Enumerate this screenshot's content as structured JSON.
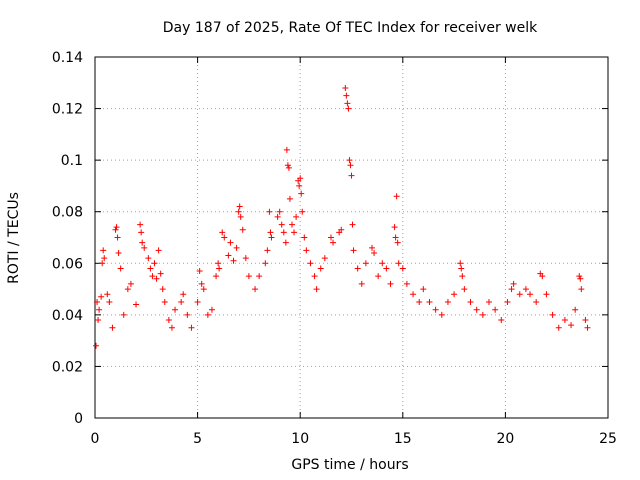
{
  "chart_data": {
    "type": "scatter",
    "title": "Day 187 of 2025, Rate Of TEC Index for receiver welk",
    "xlabel": "GPS time / hours",
    "ylabel": "ROTI / TECUs",
    "xlim": [
      0,
      25
    ],
    "ylim": [
      0,
      0.14
    ],
    "x_ticks": [
      0,
      5,
      10,
      15,
      20,
      25
    ],
    "x_tick_labels": [
      "0",
      "5",
      "10",
      "15",
      "20",
      "25"
    ],
    "y_ticks": [
      0,
      0.02,
      0.04,
      0.06,
      0.08,
      0.1,
      0.12,
      0.14
    ],
    "y_tick_labels": [
      "0",
      "0.02",
      "0.04",
      "0.06",
      "0.08",
      "0.1",
      "0.12",
      "0.14"
    ],
    "grid": true,
    "marker": "plus",
    "color": "#ff0000",
    "series": [
      {
        "points": [
          [
            0.05,
            0.028
          ],
          [
            0.1,
            0.045
          ],
          [
            0.15,
            0.038
          ],
          [
            0.2,
            0.042
          ],
          [
            0.3,
            0.047
          ],
          [
            0.35,
            0.06
          ],
          [
            0.4,
            0.065
          ],
          [
            0.45,
            0.062
          ],
          [
            0.6,
            0.048
          ],
          [
            0.7,
            0.045
          ],
          [
            0.85,
            0.035
          ],
          [
            1.0,
            0.073
          ],
          [
            1.05,
            0.074
          ],
          [
            1.1,
            0.07
          ],
          [
            1.15,
            0.064
          ],
          [
            1.25,
            0.058
          ],
          [
            1.4,
            0.04
          ],
          [
            1.6,
            0.05
          ],
          [
            1.75,
            0.052
          ],
          [
            2.0,
            0.044
          ],
          [
            2.2,
            0.075
          ],
          [
            2.25,
            0.072
          ],
          [
            2.3,
            0.068
          ],
          [
            2.4,
            0.066
          ],
          [
            2.6,
            0.062
          ],
          [
            2.7,
            0.058
          ],
          [
            2.8,
            0.055
          ],
          [
            2.9,
            0.06
          ],
          [
            3.0,
            0.054
          ],
          [
            3.1,
            0.065
          ],
          [
            3.2,
            0.056
          ],
          [
            3.3,
            0.05
          ],
          [
            3.4,
            0.045
          ],
          [
            3.6,
            0.038
          ],
          [
            3.75,
            0.035
          ],
          [
            3.9,
            0.042
          ],
          [
            4.2,
            0.045
          ],
          [
            4.3,
            0.048
          ],
          [
            4.5,
            0.04
          ],
          [
            4.7,
            0.035
          ],
          [
            5.0,
            0.045
          ],
          [
            5.1,
            0.057
          ],
          [
            5.2,
            0.052
          ],
          [
            5.3,
            0.05
          ],
          [
            5.5,
            0.04
          ],
          [
            5.7,
            0.042
          ],
          [
            5.9,
            0.055
          ],
          [
            6.0,
            0.06
          ],
          [
            6.05,
            0.058
          ],
          [
            6.2,
            0.072
          ],
          [
            6.3,
            0.07
          ],
          [
            6.5,
            0.063
          ],
          [
            6.6,
            0.068
          ],
          [
            6.75,
            0.061
          ],
          [
            6.9,
            0.066
          ],
          [
            7.0,
            0.08
          ],
          [
            7.05,
            0.082
          ],
          [
            7.1,
            0.078
          ],
          [
            7.2,
            0.073
          ],
          [
            7.35,
            0.062
          ],
          [
            7.5,
            0.055
          ],
          [
            7.8,
            0.05
          ],
          [
            8.0,
            0.055
          ],
          [
            8.3,
            0.06
          ],
          [
            8.4,
            0.065
          ],
          [
            8.5,
            0.08
          ],
          [
            8.55,
            0.072
          ],
          [
            8.6,
            0.07
          ],
          [
            8.9,
            0.078
          ],
          [
            9.0,
            0.08
          ],
          [
            9.1,
            0.075
          ],
          [
            9.2,
            0.072
          ],
          [
            9.3,
            0.068
          ],
          [
            9.35,
            0.104
          ],
          [
            9.4,
            0.098
          ],
          [
            9.45,
            0.097
          ],
          [
            9.5,
            0.085
          ],
          [
            9.6,
            0.075
          ],
          [
            9.7,
            0.072
          ],
          [
            9.8,
            0.078
          ],
          [
            9.9,
            0.092
          ],
          [
            9.95,
            0.09
          ],
          [
            10.0,
            0.093
          ],
          [
            10.05,
            0.087
          ],
          [
            10.1,
            0.08
          ],
          [
            10.2,
            0.07
          ],
          [
            10.3,
            0.065
          ],
          [
            10.5,
            0.06
          ],
          [
            10.7,
            0.055
          ],
          [
            10.8,
            0.05
          ],
          [
            11.0,
            0.058
          ],
          [
            11.2,
            0.062
          ],
          [
            11.5,
            0.07
          ],
          [
            11.6,
            0.068
          ],
          [
            11.9,
            0.072
          ],
          [
            12.0,
            0.073
          ],
          [
            12.2,
            0.128
          ],
          [
            12.25,
            0.125
          ],
          [
            12.3,
            0.122
          ],
          [
            12.35,
            0.12
          ],
          [
            12.4,
            0.1
          ],
          [
            12.45,
            0.098
          ],
          [
            12.5,
            0.094
          ],
          [
            12.55,
            0.075
          ],
          [
            12.6,
            0.065
          ],
          [
            12.8,
            0.058
          ],
          [
            13.0,
            0.052
          ],
          [
            13.2,
            0.06
          ],
          [
            13.5,
            0.066
          ],
          [
            13.6,
            0.064
          ],
          [
            13.8,
            0.055
          ],
          [
            14.0,
            0.06
          ],
          [
            14.2,
            0.058
          ],
          [
            14.4,
            0.052
          ],
          [
            14.6,
            0.074
          ],
          [
            14.65,
            0.07
          ],
          [
            14.7,
            0.086
          ],
          [
            14.75,
            0.068
          ],
          [
            14.8,
            0.06
          ],
          [
            15.0,
            0.058
          ],
          [
            15.2,
            0.052
          ],
          [
            15.5,
            0.048
          ],
          [
            15.8,
            0.045
          ],
          [
            16.0,
            0.05
          ],
          [
            16.3,
            0.045
          ],
          [
            16.6,
            0.042
          ],
          [
            16.9,
            0.04
          ],
          [
            17.2,
            0.045
          ],
          [
            17.5,
            0.048
          ],
          [
            17.8,
            0.06
          ],
          [
            17.85,
            0.058
          ],
          [
            17.9,
            0.055
          ],
          [
            18.0,
            0.05
          ],
          [
            18.3,
            0.045
          ],
          [
            18.6,
            0.042
          ],
          [
            18.9,
            0.04
          ],
          [
            19.2,
            0.045
          ],
          [
            19.5,
            0.042
          ],
          [
            19.8,
            0.038
          ],
          [
            20.1,
            0.045
          ],
          [
            20.3,
            0.05
          ],
          [
            20.4,
            0.052
          ],
          [
            20.7,
            0.048
          ],
          [
            21.0,
            0.05
          ],
          [
            21.2,
            0.048
          ],
          [
            21.5,
            0.045
          ],
          [
            21.7,
            0.056
          ],
          [
            21.8,
            0.055
          ],
          [
            22.0,
            0.048
          ],
          [
            22.3,
            0.04
          ],
          [
            22.6,
            0.035
          ],
          [
            22.9,
            0.038
          ],
          [
            23.2,
            0.036
          ],
          [
            23.4,
            0.042
          ],
          [
            23.6,
            0.055
          ],
          [
            23.65,
            0.054
          ],
          [
            23.7,
            0.05
          ],
          [
            23.9,
            0.038
          ],
          [
            24.0,
            0.035
          ]
        ]
      }
    ]
  }
}
